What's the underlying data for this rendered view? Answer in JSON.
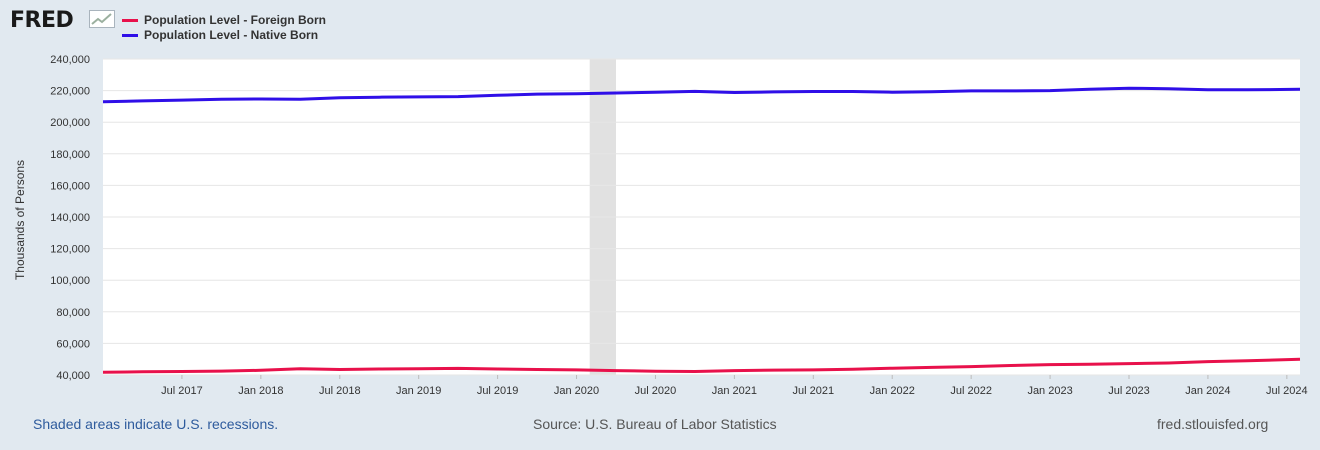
{
  "brand": {
    "logo_text": "FRED"
  },
  "chart_data": {
    "type": "line",
    "title": "",
    "xlabel": "",
    "ylabel": "Thousands of Persons",
    "ylim": [
      40000,
      240000
    ],
    "yticks": [
      40000,
      60000,
      80000,
      100000,
      120000,
      140000,
      160000,
      180000,
      200000,
      220000,
      240000
    ],
    "ytick_labels": [
      "40,000",
      "60,000",
      "80,000",
      "100,000",
      "120,000",
      "140,000",
      "160,000",
      "180,000",
      "200,000",
      "220,000",
      "240,000"
    ],
    "xlim": [
      "2017-01",
      "2024-08"
    ],
    "xticks": [
      "2017-07",
      "2018-01",
      "2018-07",
      "2019-01",
      "2019-07",
      "2020-01",
      "2020-07",
      "2021-01",
      "2021-07",
      "2022-01",
      "2022-07",
      "2023-01",
      "2023-07",
      "2024-01",
      "2024-07"
    ],
    "xtick_labels": [
      "Jul 2017",
      "Jan 2018",
      "Jul 2018",
      "Jan 2019",
      "Jul 2019",
      "Jan 2020",
      "Jul 2020",
      "Jan 2021",
      "Jul 2021",
      "Jan 2022",
      "Jul 2022",
      "Jan 2023",
      "Jul 2023",
      "Jan 2024",
      "Jul 2024"
    ],
    "recessions": [
      {
        "start": "2020-02",
        "end": "2020-04"
      }
    ],
    "grid": true,
    "legend_position": "top-left",
    "series": [
      {
        "name": "Population Level - Foreign Born",
        "color": "#e8114b",
        "x": [
          "2017-01",
          "2017-04",
          "2017-07",
          "2017-10",
          "2018-01",
          "2018-04",
          "2018-07",
          "2018-10",
          "2019-01",
          "2019-04",
          "2019-07",
          "2019-10",
          "2020-01",
          "2020-04",
          "2020-07",
          "2020-10",
          "2021-01",
          "2021-04",
          "2021-07",
          "2021-10",
          "2022-01",
          "2022-04",
          "2022-07",
          "2022-10",
          "2023-01",
          "2023-04",
          "2023-07",
          "2023-10",
          "2024-01",
          "2024-04",
          "2024-08"
        ],
        "values": [
          41800,
          42000,
          42200,
          42500,
          43000,
          44000,
          43500,
          43800,
          44000,
          44200,
          43800,
          43500,
          43200,
          42800,
          42400,
          42200,
          42800,
          43100,
          43200,
          43600,
          44300,
          44800,
          45300,
          46000,
          46600,
          46800,
          47200,
          47600,
          48500,
          49000,
          50000
        ]
      },
      {
        "name": "Population Level - Native Born",
        "color": "#2f0fe8",
        "x": [
          "2017-01",
          "2017-04",
          "2017-07",
          "2017-10",
          "2018-01",
          "2018-04",
          "2018-07",
          "2018-10",
          "2019-01",
          "2019-04",
          "2019-07",
          "2019-10",
          "2020-01",
          "2020-04",
          "2020-07",
          "2020-10",
          "2021-01",
          "2021-04",
          "2021-07",
          "2021-10",
          "2022-01",
          "2022-04",
          "2022-07",
          "2022-10",
          "2023-01",
          "2023-04",
          "2023-07",
          "2023-10",
          "2024-01",
          "2024-04",
          "2024-08"
        ],
        "values": [
          213000,
          213500,
          214000,
          214500,
          214700,
          214500,
          215500,
          215800,
          216000,
          216200,
          217000,
          217800,
          218000,
          218500,
          219000,
          219500,
          218800,
          219200,
          219400,
          219400,
          219000,
          219300,
          219800,
          219800,
          220000,
          220800,
          221500,
          221200,
          220500,
          220500,
          220800
        ]
      }
    ]
  },
  "footer": {
    "recession_note": "Shaded areas indicate U.S. recessions.",
    "source": "Source: U.S. Bureau of Labor Statistics",
    "site": "fred.stlouisfed.org"
  }
}
